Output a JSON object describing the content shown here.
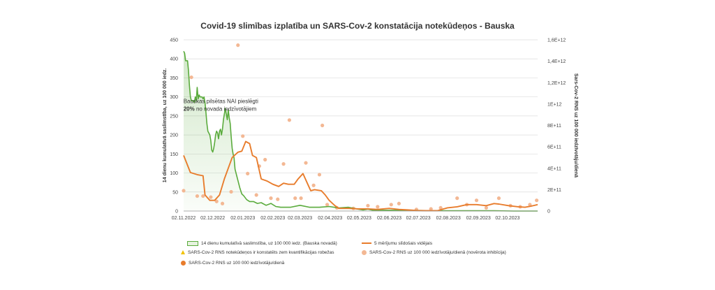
{
  "chart_data": {
    "type": "line",
    "title": "Covid-19 slimības izplatība un SARS-Cov-2 konstatācija notekūdeņos - Bauska",
    "ylabel_left": "14 dienu kumulatīvā saslimstība, uz 100 000 iedz.",
    "ylabel_right": "Sars-Cov-2 RNS uz 100 000 iedzīvotāju/dienā",
    "ylim_left": [
      0,
      450
    ],
    "ylim_right": [
      0,
      1600000000000.0
    ],
    "left_ticks": [
      "0",
      "50",
      "100",
      "150",
      "200",
      "250",
      "300",
      "350",
      "400",
      "450"
    ],
    "right_ticks": [
      "0",
      "2E+11",
      "4E+11",
      "6E+11",
      "8E+11",
      "1E+12",
      "1,2E+12",
      "1,4E+12",
      "1,6E+12"
    ],
    "x_labels": [
      "02.11.2022",
      "02.12.2022",
      "02.01.2023",
      "02.02.2023",
      "02.03.2023",
      "02.04.2023",
      "02.05.2023",
      "02.06.2023",
      "02.07.2023",
      "02.08.2023",
      "02.09.2023",
      "02.10.2023"
    ],
    "annotation": {
      "line1": "Bauskas pilsētas NAI pieslēgti",
      "line2_bold": "20%",
      "line2_rest": " no novada iedzīvotājiem",
      "x_day": 61,
      "y_left": 295
    },
    "series": [
      {
        "name": "14 dienu kumulatīvā saslimstība, uz 100 000 iedz. (Bauska novadā)",
        "axis": "left",
        "color": "#5aab3c",
        "points": [
          [
            0,
            420
          ],
          [
            1,
            415
          ],
          [
            2,
            395
          ],
          [
            4,
            395
          ],
          [
            5,
            370
          ],
          [
            6,
            330
          ],
          [
            7,
            300
          ],
          [
            8,
            290
          ],
          [
            10,
            290
          ],
          [
            11,
            285
          ],
          [
            12,
            300
          ],
          [
            13,
            290
          ],
          [
            14,
            325
          ],
          [
            15,
            295
          ],
          [
            16,
            305
          ],
          [
            17,
            300
          ],
          [
            19,
            300
          ],
          [
            20,
            295
          ],
          [
            21,
            300
          ],
          [
            22,
            285
          ],
          [
            23,
            260
          ],
          [
            24,
            230
          ],
          [
            25,
            210
          ],
          [
            26,
            205
          ],
          [
            27,
            200
          ],
          [
            28,
            185
          ],
          [
            29,
            160
          ],
          [
            30,
            155
          ],
          [
            31,
            165
          ],
          [
            32,
            180
          ],
          [
            33,
            200
          ],
          [
            34,
            210
          ],
          [
            35,
            205
          ],
          [
            36,
            190
          ],
          [
            37,
            210
          ],
          [
            38,
            215
          ],
          [
            39,
            200
          ],
          [
            40,
            215
          ],
          [
            41,
            240
          ],
          [
            42,
            255
          ],
          [
            43,
            270
          ],
          [
            44,
            255
          ],
          [
            45,
            240
          ],
          [
            46,
            265
          ],
          [
            47,
            245
          ],
          [
            48,
            230
          ],
          [
            49,
            195
          ],
          [
            50,
            165
          ],
          [
            51,
            150
          ],
          [
            52,
            140
          ],
          [
            53,
            110
          ],
          [
            54,
            100
          ],
          [
            55,
            90
          ],
          [
            56,
            80
          ],
          [
            58,
            60
          ],
          [
            60,
            45
          ],
          [
            62,
            40
          ],
          [
            65,
            30
          ],
          [
            68,
            25
          ],
          [
            72,
            25
          ],
          [
            76,
            20
          ],
          [
            80,
            22
          ],
          [
            85,
            15
          ],
          [
            90,
            20
          ],
          [
            95,
            12
          ],
          [
            100,
            10
          ],
          [
            110,
            10
          ],
          [
            120,
            15
          ],
          [
            130,
            10
          ],
          [
            140,
            10
          ],
          [
            150,
            12
          ],
          [
            160,
            8
          ],
          [
            170,
            10
          ],
          [
            180,
            5
          ],
          [
            185,
            3
          ],
          [
            190,
            5
          ],
          [
            195,
            2
          ],
          [
            200,
            2
          ],
          [
            210,
            2
          ],
          [
            230,
            2
          ],
          [
            260,
            1
          ],
          [
            280,
            1
          ],
          [
            300,
            1
          ],
          [
            320,
            1
          ],
          [
            340,
            0
          ],
          [
            365,
            0
          ]
        ]
      },
      {
        "name": "5 mērījumu slīdošais vidējais",
        "axis": "right",
        "color": "#e87c2c",
        "points": [
          [
            0,
            520000000000.0
          ],
          [
            7,
            360000000000.0
          ],
          [
            14,
            340000000000.0
          ],
          [
            20,
            330000000000.0
          ],
          [
            22,
            150000000000.0
          ],
          [
            27,
            100000000000.0
          ],
          [
            32,
            100000000000.0
          ],
          [
            37,
            150000000000.0
          ],
          [
            42,
            300000000000.0
          ],
          [
            50,
            500000000000.0
          ],
          [
            56,
            550000000000.0
          ],
          [
            60,
            560000000000.0
          ],
          [
            64,
            650000000000.0
          ],
          [
            68,
            630000000000.0
          ],
          [
            71,
            520000000000.0
          ],
          [
            75,
            500000000000.0
          ],
          [
            80,
            300000000000.0
          ],
          [
            86,
            280000000000.0
          ],
          [
            92,
            250000000000.0
          ],
          [
            98,
            230000000000.0
          ],
          [
            103,
            260000000000.0
          ],
          [
            108,
            250000000000.0
          ],
          [
            114,
            250000000000.0
          ],
          [
            118,
            300000000000.0
          ],
          [
            123,
            350000000000.0
          ],
          [
            128,
            250000000000.0
          ],
          [
            131,
            190000000000.0
          ],
          [
            135,
            200000000000.0
          ],
          [
            142,
            190000000000.0
          ],
          [
            146,
            150000000000.0
          ],
          [
            150,
            100000000000.0
          ],
          [
            156,
            50000000000.0
          ],
          [
            160,
            25000000000.0
          ],
          [
            170,
            25000000000.0
          ],
          [
            180,
            20000000000.0
          ],
          [
            190,
            20000000000.0
          ],
          [
            200,
            15000000000.0
          ],
          [
            212,
            25000000000.0
          ],
          [
            222,
            15000000000.0
          ],
          [
            232,
            10000000000.0
          ],
          [
            240,
            5000000000.0
          ],
          [
            250,
            3000000000.0
          ],
          [
            262,
            4000000000.0
          ],
          [
            272,
            30000000000.0
          ],
          [
            282,
            40000000000.0
          ],
          [
            292,
            60000000000.0
          ],
          [
            302,
            60000000000.0
          ],
          [
            312,
            50000000000.0
          ],
          [
            320,
            70000000000.0
          ],
          [
            325,
            65000000000.0
          ],
          [
            335,
            50000000000.0
          ],
          [
            345,
            40000000000.0
          ],
          [
            352,
            35000000000.0
          ],
          [
            358,
            45000000000.0
          ],
          [
            365,
            60000000000.0
          ]
        ]
      }
    ],
    "scatter_inhibition": {
      "name": "SARS-Cov-2 RNS uz 100 000 iedzīvotāju/dienā (novērota inhibīcija)",
      "axis": "right",
      "color": "#f3b894",
      "points": [
        [
          0,
          190000000000.0
        ],
        [
          8,
          1250000000000.0
        ],
        [
          14,
          140000000000.0
        ],
        [
          20,
          140000000000.0
        ],
        [
          28,
          130000000000.0
        ],
        [
          34,
          90000000000.0
        ],
        [
          40,
          70000000000.0
        ],
        [
          49,
          180000000000.0
        ],
        [
          56,
          1550000000000.0
        ],
        [
          61,
          700000000000.0
        ],
        [
          66,
          350000000000.0
        ],
        [
          75,
          150000000000.0
        ],
        [
          78,
          420000000000.0
        ],
        [
          84,
          480000000000.0
        ],
        [
          90,
          120000000000.0
        ],
        [
          97,
          110000000000.0
        ],
        [
          103,
          440000000000.0
        ],
        [
          109,
          850000000000.0
        ],
        [
          115,
          120000000000.0
        ],
        [
          121,
          120000000000.0
        ],
        [
          126,
          450000000000.0
        ],
        [
          134,
          240000000000.0
        ],
        [
          140,
          340000000000.0
        ],
        [
          143,
          800000000000.0
        ],
        [
          148,
          60000000000.0
        ],
        [
          158,
          30000000000.0
        ],
        [
          175,
          25000000000.0
        ],
        [
          190,
          50000000000.0
        ],
        [
          200,
          40000000000.0
        ],
        [
          214,
          60000000000.0
        ],
        [
          222,
          70000000000.0
        ],
        [
          240,
          15000000000.0
        ],
        [
          255,
          20000000000.0
        ],
        [
          265,
          30000000000.0
        ],
        [
          282,
          120000000000.0
        ],
        [
          292,
          60000000000.0
        ],
        [
          302,
          100000000000.0
        ],
        [
          312,
          30000000000.0
        ],
        [
          325,
          120000000000.0
        ],
        [
          337,
          50000000000.0
        ],
        [
          347,
          40000000000.0
        ],
        [
          357,
          60000000000.0
        ],
        [
          364,
          100000000000.0
        ]
      ]
    },
    "legend": [
      {
        "marker": "line-green",
        "label": "14 dienu kumulatīvā saslimstība, uz 100 000 iedz. (Bauska novadā)"
      },
      {
        "marker": "line-orange",
        "label": "5 mērījumu slīdošais vidējais"
      },
      {
        "marker": "triangle-yellow",
        "label": "SARS-Cov-2 RNS notekūdeņos ir konstatēts zem kvantifikācijas robežas"
      },
      {
        "marker": "dot-light",
        "label": "SARS-Cov-2 RNS uz 100 000 iedzīvotāju/dienā (novērota inhibīcija)"
      },
      {
        "marker": "dot-orange",
        "label": "SARS-Cov-2 RNS uz 100 000 iedzīvotāju/dienā"
      }
    ]
  }
}
